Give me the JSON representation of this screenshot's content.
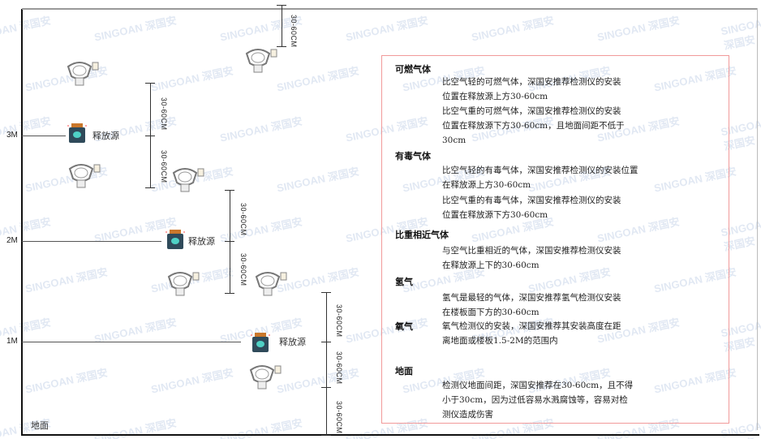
{
  "levels": {
    "m3": "3M",
    "m2": "2M",
    "m1": "1M",
    "ground": "地面"
  },
  "source_label": "释放源",
  "dimension_label": "30-60CM",
  "watermark": "SINGOAN 深国安",
  "colors": {
    "border": "#f19a9a",
    "source_body": "#2f4a5a",
    "source_face": "#4fd1c5",
    "source_cap": "#c9772b"
  },
  "panel": {
    "sections": [
      {
        "title": "可燃气体",
        "paras": [
          "比空气轻的可燃气体，深国安推荐检测仪的安装\n位置在释放源上方30-60cm",
          "比空气重的可燃气体，深国安推荐检测仪的安装\n位置在释放源下方30-60cm，且地面间距不低于\n30cm"
        ]
      },
      {
        "title": "有毒气体",
        "paras": [
          "比空气轻的有毒气体，深国安推荐检测仪的安装位置\n在释放源上方30-60cm",
          "比空气重的有毒气体，深国安推荐检测仪的安装\n位置在释放源下方30-60cm"
        ]
      },
      {
        "title": "比重相近气体",
        "paras": [
          "与空气比重相近的气体，深国安推荐检测仪安装\n在释放源上下的30-60cm"
        ]
      },
      {
        "title": "氢气",
        "paras": [
          "氢气是最轻的气体，深国安推荐氢气检测仪安装\n在楼板面下方的30-60cm"
        ]
      },
      {
        "title": "氧气",
        "paras": [
          "氧气检测仪的安装，深国安推荐其安装高度在距\n离地面或楼板1.5-2M的范围内"
        ]
      },
      {
        "title": "地面",
        "paras": [
          "检测仪地面间距，深国安推荐在30-60cm，且不得\n小于30cm，因为过低容易水溅腐蚀等，容易对检\n测仪造成伤害"
        ]
      }
    ]
  }
}
